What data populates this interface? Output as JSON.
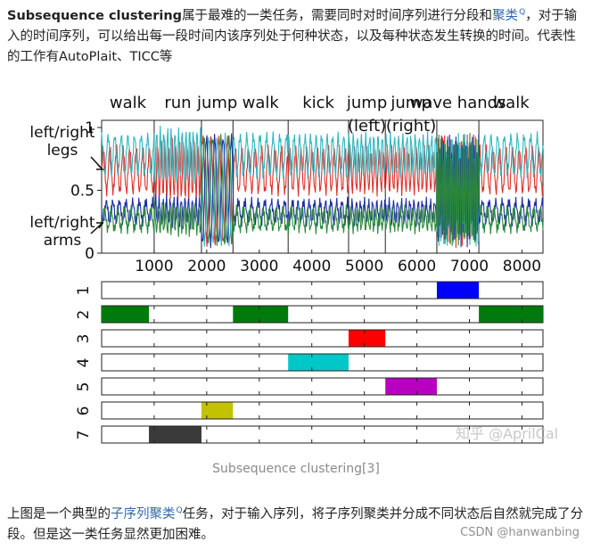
{
  "article": {
    "intro_bold": "Subsequence clustering",
    "intro_text1": "属于最难的一类任务，需要同时对时间序列进行分段和",
    "intro_link": "聚类",
    "intro_text2": "，对于输入的时间序列，可以给出每一段时间内该序列处于何种状态，以及每种状态发生转换的时间。代表性的工作有AutoPlait、TICC等",
    "caption": "Subsequence clustering[3]",
    "outro_text1": "上图是一个典型的",
    "outro_link": "子序列聚类",
    "outro_text2": "任务，对于输入序列，将子序列聚类并分成不同状态后自然就完成了分段。但是这一类任务显然更加困难。",
    "link_mark": "Q",
    "watermark_csdn": "CSDN @hanwanbing",
    "watermark_zhihu": "知乎 @AprilCal"
  },
  "chart_data": [
    {
      "type": "line",
      "activities": [
        {
          "label": "walk",
          "start": 0,
          "end": 1000
        },
        {
          "label": "run",
          "start": 1000,
          "end": 1900
        },
        {
          "label": "jump",
          "start": 1900,
          "end": 2500
        },
        {
          "label": "walk",
          "start": 2500,
          "end": 3550
        },
        {
          "label": "kick",
          "start": 3550,
          "end": 4700
        },
        {
          "label": "jump (left)",
          "start": 4700,
          "end": 5400
        },
        {
          "label": "jump (right)",
          "start": 5400,
          "end": 6380
        },
        {
          "label": "wave hands",
          "start": 6380,
          "end": 7180
        },
        {
          "label": "walk",
          "start": 7180,
          "end": 8400
        }
      ],
      "annotations": [
        "left/right legs",
        "left/right arms"
      ],
      "xlim": [
        0,
        8400
      ],
      "ylim": [
        0,
        1
      ],
      "xticks": [
        1000,
        2000,
        3000,
        4000,
        5000,
        6000,
        7000,
        8000
      ],
      "yticks": [
        0,
        0.5,
        1
      ],
      "series": [
        {
          "color": "#e0302a",
          "base": 0.66,
          "amp": 0.17
        },
        {
          "color": "#2fb8c0",
          "base": 0.78,
          "amp": 0.15
        },
        {
          "color": "#1f2fa8",
          "base": 0.33,
          "amp": 0.08
        },
        {
          "color": "#2b8a3a",
          "base": 0.27,
          "amp": 0.08
        }
      ]
    },
    {
      "type": "timeline",
      "xlim": [
        0,
        8400
      ],
      "clusters": [
        {
          "id": "1",
          "color": "#0000ff",
          "segments": [
            [
              6380,
              7180
            ]
          ]
        },
        {
          "id": "2",
          "color": "#007a0c",
          "segments": [
            [
              0,
              900
            ],
            [
              2500,
              3550
            ],
            [
              7180,
              8400
            ]
          ]
        },
        {
          "id": "3",
          "color": "#ff0000",
          "segments": [
            [
              4700,
              5400
            ]
          ]
        },
        {
          "id": "4",
          "color": "#00c8c8",
          "segments": [
            [
              3550,
              4700
            ]
          ]
        },
        {
          "id": "5",
          "color": "#b800c0",
          "segments": [
            [
              5400,
              6380
            ]
          ]
        },
        {
          "id": "6",
          "color": "#c2c200",
          "segments": [
            [
              1900,
              2500
            ]
          ]
        },
        {
          "id": "7",
          "color": "#3a3a3a",
          "segments": [
            [
              900,
              1900
            ]
          ]
        }
      ]
    }
  ]
}
